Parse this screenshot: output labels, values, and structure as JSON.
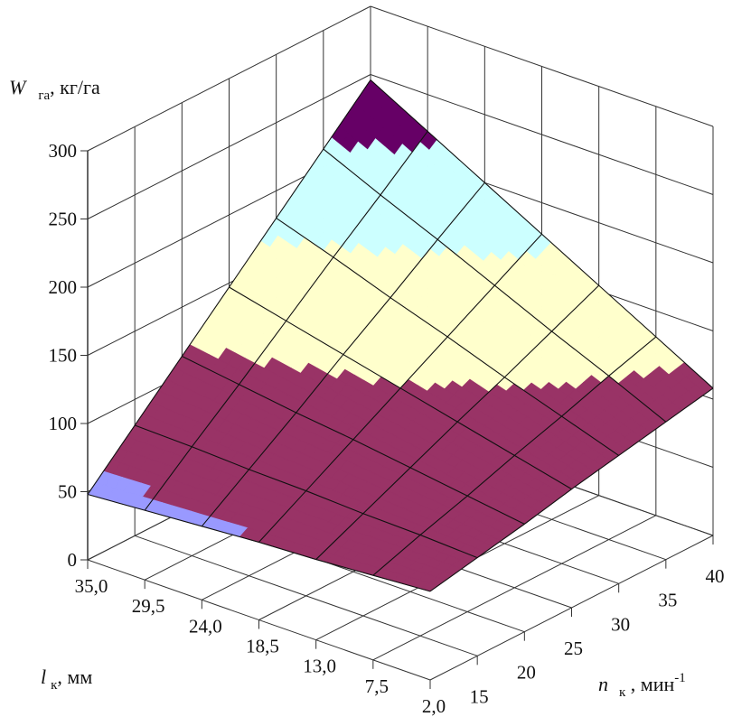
{
  "chart_data": {
    "type": "surface3d",
    "zlabel": {
      "symbol": "W",
      "subscript": "га",
      "unit": ", кг/га"
    },
    "xlabel": {
      "symbol": "l",
      "subscript": "к",
      "unit": ", мм"
    },
    "ylabel": {
      "symbol": "n",
      "subscript": "к",
      "unit": " , мин",
      "superscript": "-1"
    },
    "x_ticks": [
      "2,0",
      "7,5",
      "13,0",
      "18,5",
      "24,0",
      "29,5",
      "35,0"
    ],
    "x_values": [
      2.0,
      7.5,
      13.0,
      18.5,
      24.0,
      29.5,
      35.0
    ],
    "y_ticks": [
      "15",
      "20",
      "25",
      "30",
      "35",
      "40"
    ],
    "y_values": [
      10,
      15,
      20,
      25,
      30,
      35,
      40
    ],
    "z_ticks": [
      "0",
      "50",
      "100",
      "150",
      "200",
      "250",
      "300"
    ],
    "zlim": [
      0,
      300
    ],
    "grid": true,
    "z_matrix_rows_by_l_cols_by_n": [
      [
        65,
        72,
        79,
        87,
        94,
        101,
        108
      ],
      [
        62,
        74,
        85,
        97,
        108,
        120,
        131
      ],
      [
        59,
        75,
        91,
        107,
        122,
        138,
        154
      ],
      [
        57,
        77,
        97,
        117,
        137,
        157,
        177
      ],
      [
        54,
        78,
        102,
        127,
        151,
        176,
        200
      ],
      [
        51,
        80,
        108,
        137,
        166,
        194,
        223
      ],
      [
        48,
        81,
        114,
        147,
        180,
        213,
        246
      ]
    ],
    "color_levels": [
      58,
      119,
      170,
      216
    ],
    "colors": [
      "#9999ff",
      "#993366",
      "#ffffcc",
      "#ccffff",
      "#660066"
    ]
  }
}
